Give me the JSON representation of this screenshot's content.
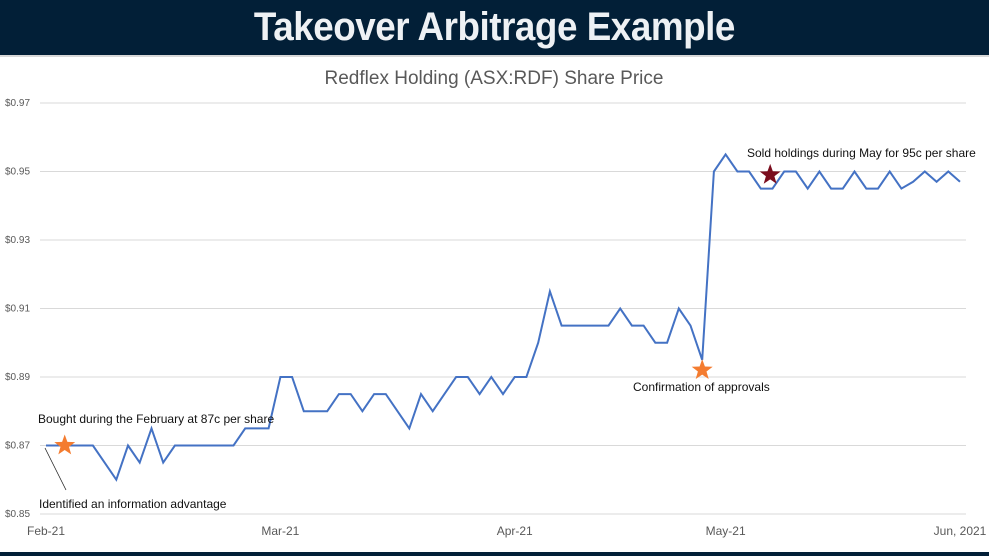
{
  "header": {
    "title": "Takeover Arbitrage Example"
  },
  "chart_data": {
    "type": "line",
    "title": "Redflex Holding (ASX:RDF) Share Price",
    "xlabel": "",
    "ylabel": "",
    "ylim": [
      0.85,
      0.97
    ],
    "yticks": [
      0.85,
      0.87,
      0.89,
      0.91,
      0.93,
      0.95,
      0.97
    ],
    "ytick_labels": [
      "$0.85",
      "$0.87",
      "$0.89",
      "$0.91",
      "$0.93",
      "$0.95",
      "$0.97"
    ],
    "grid": true,
    "xticks": [
      {
        "index": 0,
        "label": "Feb-21"
      },
      {
        "index": 20,
        "label": "Mar-21"
      },
      {
        "index": 40,
        "label": "Apr-21"
      },
      {
        "index": 58,
        "label": "May-21"
      },
      {
        "index": 78,
        "label": "Jun, 2021"
      }
    ],
    "series": [
      {
        "name": "Share Price",
        "color": "#4472c4",
        "values": [
          0.87,
          0.87,
          0.87,
          0.87,
          0.87,
          0.865,
          0.86,
          0.87,
          0.865,
          0.875,
          0.865,
          0.87,
          0.87,
          0.87,
          0.87,
          0.87,
          0.87,
          0.875,
          0.875,
          0.875,
          0.89,
          0.89,
          0.88,
          0.88,
          0.88,
          0.885,
          0.885,
          0.88,
          0.885,
          0.885,
          0.88,
          0.875,
          0.885,
          0.88,
          0.885,
          0.89,
          0.89,
          0.885,
          0.89,
          0.885,
          0.89,
          0.89,
          0.9,
          0.915,
          0.905,
          0.905,
          0.905,
          0.905,
          0.905,
          0.91,
          0.905,
          0.905,
          0.9,
          0.9,
          0.91,
          0.905,
          0.895,
          0.95,
          0.955,
          0.95,
          0.95,
          0.945,
          0.945,
          0.95,
          0.95,
          0.945,
          0.95,
          0.945,
          0.945,
          0.95,
          0.945,
          0.945,
          0.95,
          0.945,
          0.947,
          0.95,
          0.947,
          0.95,
          0.947
        ]
      }
    ],
    "markers": [
      {
        "name": "buy-star",
        "index": 1.6,
        "value": 0.87,
        "color": "#f47c30"
      },
      {
        "name": "approval-star",
        "index": 56,
        "value": 0.892,
        "color": "#f47c30"
      },
      {
        "name": "sell-star",
        "index": 61.8,
        "value": 0.949,
        "color": "#7b0d1e"
      }
    ],
    "annotations": {
      "bought": "Bought during the February at 87c per share",
      "identified": "Identified an information advantage",
      "approvals": "Confirmation of approvals",
      "sold": "Sold holdings during May for 95c per share"
    }
  }
}
